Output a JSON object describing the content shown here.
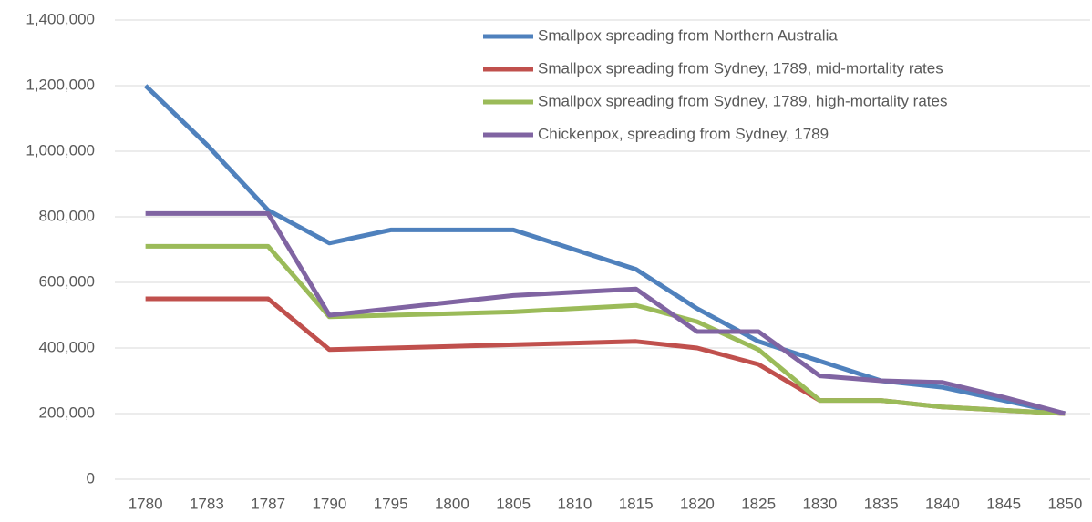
{
  "chart_data": {
    "type": "line",
    "categories": [
      "1780",
      "1783",
      "1787",
      "1790",
      "1795",
      "1800",
      "1805",
      "1810",
      "1815",
      "1820",
      "1825",
      "1830",
      "1835",
      "1840",
      "1845",
      "1850"
    ],
    "series": [
      {
        "name": "Smallpox spreading from Northern Australia",
        "color": "#4f81bd",
        "values": [
          1200000,
          1020000,
          820000,
          720000,
          760000,
          760000,
          760000,
          700000,
          640000,
          520000,
          420000,
          360000,
          300000,
          280000,
          240000,
          200000
        ]
      },
      {
        "name": "Smallpox spreading from Sydney, 1789, mid-mortality rates",
        "color": "#c0504d",
        "values": [
          550000,
          550000,
          550000,
          395000,
          400000,
          405000,
          410000,
          415000,
          420000,
          400000,
          350000,
          240000,
          240000,
          220000,
          210000,
          200000
        ]
      },
      {
        "name": "Smallpox spreading from Sydney, 1789, high-mortality rates",
        "color": "#9bbb59",
        "values": [
          710000,
          710000,
          710000,
          495000,
          500000,
          505000,
          510000,
          520000,
          530000,
          480000,
          395000,
          240000,
          240000,
          220000,
          210000,
          200000
        ]
      },
      {
        "name": "Chickenpox, spreading from Sydney, 1789",
        "color": "#8064a2",
        "values": [
          810000,
          810000,
          810000,
          500000,
          520000,
          540000,
          560000,
          570000,
          580000,
          450000,
          450000,
          315000,
          300000,
          295000,
          250000,
          200000
        ]
      }
    ],
    "ylim": [
      0,
      1400000
    ],
    "yticks": [
      0,
      {
        "value": 200000,
        "label": "200,000"
      },
      {
        "value": 400000,
        "label": "400,000"
      },
      {
        "value": 600000,
        "label": "600,000"
      },
      {
        "value": 800000,
        "label": "800,000"
      },
      {
        "value": 1000000,
        "label": "1,000,000"
      },
      {
        "value": 1200000,
        "label": "1,200,000"
      },
      {
        "value": 1400000,
        "label": "1,400,000"
      }
    ],
    "grid": true,
    "legend": "top-right"
  }
}
